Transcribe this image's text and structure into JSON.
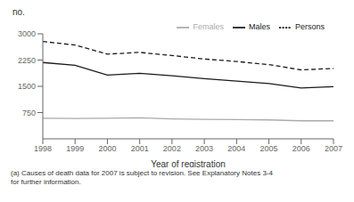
{
  "chart_data": {
    "type": "line",
    "x_label": "Year of registration",
    "y_label": "no.",
    "annotations": [
      "(a) Causes of death data for 2007 is subject to revision. See Explanatory Notes 3-4\nfor further information."
    ],
    "x": [
      1998,
      1999,
      2000,
      2001,
      2002,
      2003,
      2004,
      2005,
      2006,
      2007
    ],
    "series": [
      {
        "name": "Males",
        "color": "#1a1a1a",
        "line_style": "solid",
        "values": [
          2180,
          2100,
          1820,
          1870,
          1800,
          1720,
          1650,
          1580,
          1450,
          1490
        ]
      },
      {
        "name": "Females",
        "color": "#aaaaaa",
        "line_style": "solid",
        "values": [
          590,
          580,
          590,
          600,
          570,
          555,
          550,
          540,
          515,
          515
        ]
      },
      {
        "name": "Persons",
        "color": "#1a1a1a",
        "line_style": "dashed",
        "values": [
          2780,
          2680,
          2420,
          2470,
          2380,
          2280,
          2210,
          2120,
          1970,
          2010
        ]
      }
    ],
    "xlim": [
      1998,
      2007
    ],
    "xticks": [
      1998,
      1999,
      2000,
      2001,
      2002,
      2003,
      2004,
      2005,
      2006,
      2007
    ],
    "ylim": [
      0,
      3000
    ],
    "yticks": [
      750,
      1500,
      2250,
      3000
    ],
    "legend": "upper right",
    "grid": false
  }
}
